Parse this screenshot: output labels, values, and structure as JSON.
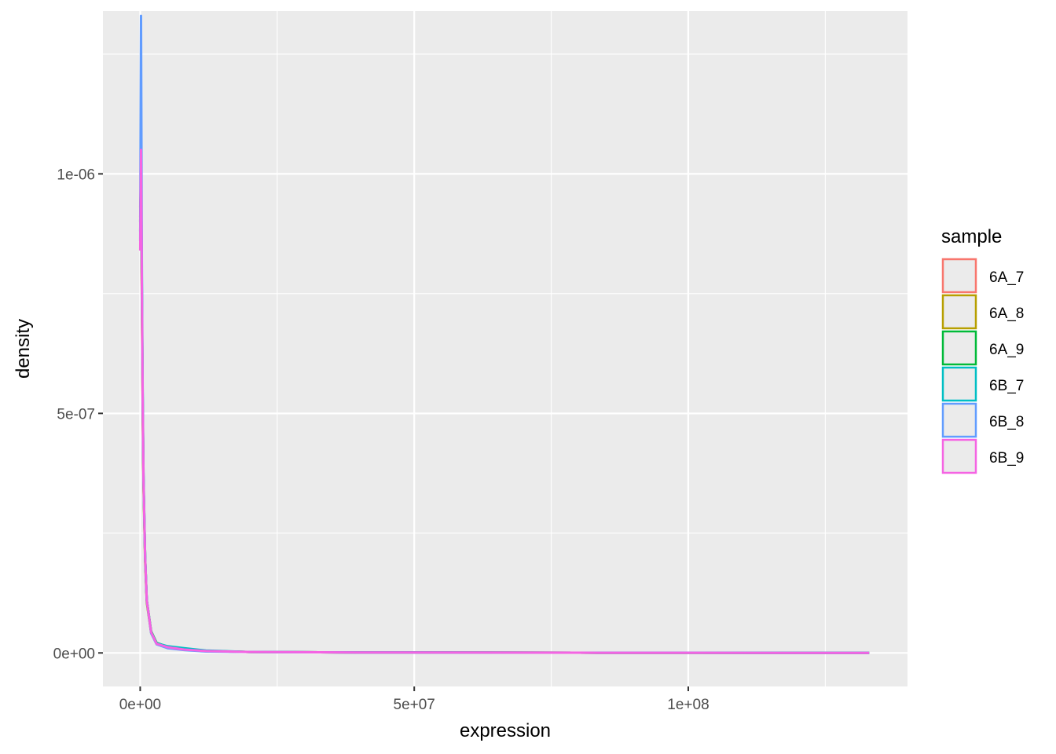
{
  "chart_data": {
    "type": "line",
    "title": "",
    "xlabel": "expression",
    "ylabel": "density",
    "xlim": [
      -6800000,
      140000000
    ],
    "ylim": [
      -7e-08,
      1.34e-06
    ],
    "x_ticks": [
      {
        "value": 0,
        "label": "0e+00"
      },
      {
        "value": 50000000,
        "label": "5e+07"
      },
      {
        "value": 100000000,
        "label": "1e+08"
      }
    ],
    "x_minor": [
      25000000,
      75000000,
      125000000
    ],
    "y_ticks": [
      {
        "value": 0,
        "label": "0e+00"
      },
      {
        "value": 5e-07,
        "label": "5e-07"
      },
      {
        "value": 1e-06,
        "label": "1e-06"
      }
    ],
    "y_minor": [
      2.5e-07,
      7.5e-07,
      1.25e-06
    ],
    "grid": true,
    "legend": {
      "title": "sample",
      "position": "right"
    },
    "series": [
      {
        "name": "6A_7",
        "color": "#F8766D",
        "x": [
          0,
          150000,
          300000,
          450000,
          600000,
          900000,
          1200000,
          2000000,
          3000000,
          5000000,
          8000000,
          12000000,
          20000000,
          40000000,
          80000000,
          133000000
        ],
        "y": [
          9.3e-07,
          9.9e-07,
          7.5e-07,
          5.2e-07,
          3.6e-07,
          2e-07,
          1.1e-07,
          4.4e-08,
          2e-08,
          1.2e-08,
          8e-09,
          4e-09,
          2e-09,
          1e-09,
          4e-10,
          1e-10
        ]
      },
      {
        "name": "6A_8",
        "color": "#B79F00",
        "x": [
          0,
          150000,
          300000,
          450000,
          600000,
          900000,
          1200000,
          2000000,
          3000000,
          5000000,
          8000000,
          12000000,
          20000000,
          40000000,
          80000000,
          133000000
        ],
        "y": [
          9.1e-07,
          9.6e-07,
          7.3e-07,
          5.1e-07,
          3.5e-07,
          1.9e-07,
          1.05e-07,
          4.2e-08,
          1.9e-08,
          1.3e-08,
          9e-09,
          4e-09,
          2e-09,
          1e-09,
          4e-10,
          1e-10
        ]
      },
      {
        "name": "6A_9",
        "color": "#00BA38",
        "x": [
          0,
          150000,
          300000,
          450000,
          600000,
          900000,
          1200000,
          2000000,
          3000000,
          5000000,
          8000000,
          12000000,
          20000000,
          40000000,
          80000000,
          133000000
        ],
        "y": [
          9e-07,
          1e-06,
          7.6e-07,
          5.3e-07,
          3.6e-07,
          2e-07,
          1.1e-07,
          4.5e-08,
          2.1e-08,
          1.3e-08,
          8e-09,
          4e-09,
          2e-09,
          1e-09,
          4e-10,
          1e-10
        ]
      },
      {
        "name": "6B_7",
        "color": "#00BFC4",
        "x": [
          0,
          150000,
          300000,
          450000,
          600000,
          900000,
          1200000,
          2000000,
          3000000,
          5000000,
          8000000,
          12000000,
          20000000,
          40000000,
          80000000,
          133000000
        ],
        "y": [
          8.8e-07,
          1.02e-06,
          7.8e-07,
          5.4e-07,
          3.7e-07,
          2e-07,
          1.1e-07,
          4.3e-08,
          2e-08,
          1.4e-08,
          1e-08,
          5e-09,
          2e-09,
          1e-09,
          4e-10,
          1e-10
        ]
      },
      {
        "name": "6B_8",
        "color": "#619CFF",
        "x": [
          0,
          150000,
          300000,
          450000,
          600000,
          900000,
          1200000,
          2000000,
          3000000,
          5000000,
          8000000,
          12000000,
          20000000,
          40000000,
          80000000,
          133000000
        ],
        "y": [
          8.6e-07,
          1.33e-06,
          8.2e-07,
          5.5e-07,
          3.7e-07,
          2e-07,
          1.1e-07,
          4.1e-08,
          1.8e-08,
          1e-08,
          6e-09,
          3e-09,
          2e-09,
          1e-09,
          4e-10,
          1e-10
        ]
      },
      {
        "name": "6B_9",
        "color": "#F564E3",
        "x": [
          0,
          150000,
          300000,
          450000,
          600000,
          900000,
          1200000,
          2000000,
          3000000,
          5000000,
          8000000,
          12000000,
          20000000,
          40000000,
          80000000,
          133000000
        ],
        "y": [
          8.4e-07,
          1.05e-06,
          7.7e-07,
          5.3e-07,
          3.6e-07,
          2e-07,
          1.1e-07,
          4.3e-08,
          1.9e-08,
          1.2e-08,
          7e-09,
          4e-09,
          2e-09,
          1e-09,
          4e-10,
          1e-10
        ]
      }
    ]
  }
}
